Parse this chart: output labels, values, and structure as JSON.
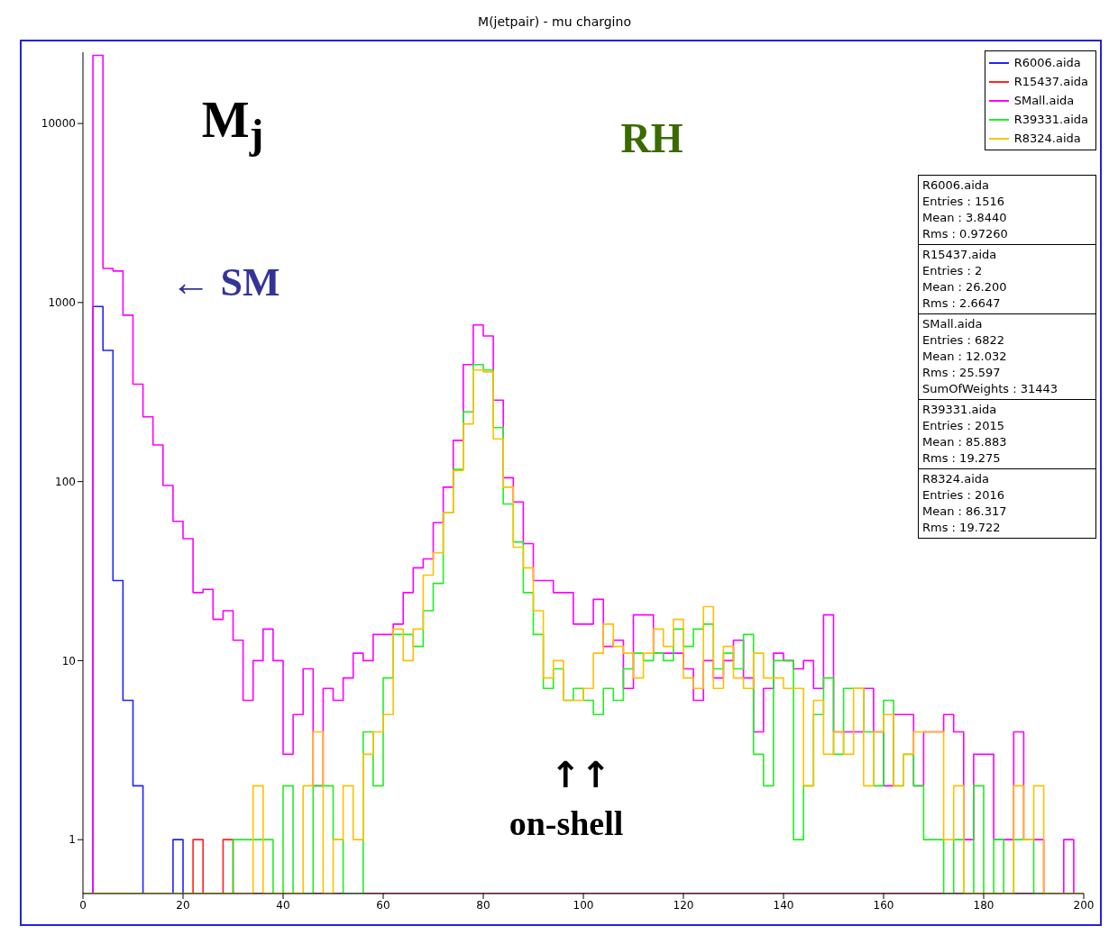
{
  "chart_data": {
    "type": "histogram",
    "title": "M(jetpair) - mu chargino",
    "bins": [
      0,
      2,
      4,
      6,
      8,
      10,
      12,
      14,
      16,
      18,
      20,
      22,
      24,
      26,
      28,
      30,
      32,
      34,
      36,
      38,
      40,
      42,
      44,
      46,
      48,
      50,
      52,
      54,
      56,
      58,
      60,
      62,
      64,
      66,
      68,
      70,
      72,
      74,
      76,
      78,
      80,
      82,
      84,
      86,
      88,
      90,
      92,
      94,
      96,
      98,
      100,
      102,
      104,
      106,
      108,
      110,
      112,
      114,
      116,
      118,
      120,
      122,
      124,
      126,
      128,
      130,
      132,
      134,
      136,
      138,
      140,
      142,
      144,
      146,
      148,
      150,
      152,
      154,
      156,
      158,
      160,
      162,
      164,
      166,
      168,
      170,
      172,
      174,
      176,
      178,
      180,
      182,
      184,
      186,
      188,
      190,
      192,
      194,
      196,
      198,
      200
    ],
    "series": [
      {
        "name": "R6006.aida",
        "color": "#2222ff",
        "values": [
          null,
          950,
          540,
          28,
          6,
          2,
          null,
          null,
          null,
          1,
          null,
          null,
          null,
          null,
          null,
          null,
          null,
          null,
          null,
          null,
          null,
          null,
          null,
          null,
          null,
          null,
          null,
          null,
          null,
          null,
          null,
          null,
          null,
          null,
          null,
          null,
          null,
          null,
          null,
          null,
          null,
          null,
          null,
          null,
          null,
          null,
          null,
          null,
          null,
          null,
          null,
          null,
          null,
          null,
          null,
          null,
          null,
          null,
          null,
          null,
          null,
          null,
          null,
          null,
          null,
          null,
          null,
          null,
          null,
          null,
          null,
          null,
          null,
          null,
          null,
          null,
          null,
          null,
          null,
          null,
          null,
          null,
          null,
          null,
          null,
          null,
          null,
          null,
          null,
          null,
          null,
          null,
          null,
          null,
          null,
          null,
          null,
          null,
          null,
          null
        ]
      },
      {
        "name": "R15437.aida",
        "color": "#ff2222",
        "values": [
          null,
          null,
          null,
          null,
          null,
          null,
          null,
          null,
          null,
          null,
          null,
          1,
          null,
          null,
          1,
          null,
          null,
          null,
          null,
          null,
          null,
          null,
          null,
          null,
          null,
          null,
          null,
          null,
          null,
          null,
          null,
          null,
          null,
          null,
          null,
          null,
          null,
          null,
          null,
          null,
          null,
          null,
          null,
          null,
          null,
          null,
          null,
          null,
          null,
          null,
          null,
          null,
          null,
          null,
          null,
          null,
          null,
          null,
          null,
          null,
          null,
          null,
          null,
          null,
          null,
          null,
          null,
          null,
          null,
          null,
          null,
          null,
          null,
          null,
          null,
          null,
          null,
          null,
          null,
          null,
          null,
          null,
          null,
          null,
          null,
          null,
          null,
          null,
          null,
          null,
          null,
          null,
          null,
          null,
          null,
          null,
          null,
          null,
          null,
          null
        ]
      },
      {
        "name": "SMall.aida",
        "color": "#ff00ff",
        "values": [
          null,
          24000,
          1550,
          1500,
          850,
          350,
          230,
          160,
          95,
          60,
          48,
          24,
          25,
          17,
          19,
          13,
          6,
          10,
          15,
          10,
          3,
          5,
          9,
          2,
          7,
          6,
          8,
          11,
          10,
          14,
          14,
          16,
          24,
          33,
          37,
          59,
          93,
          170,
          450,
          750,
          650,
          285,
          105,
          77,
          45,
          28,
          28,
          24,
          24,
          16,
          16,
          22,
          12,
          13,
          7,
          18,
          18,
          11,
          11,
          11,
          9,
          6,
          10,
          8,
          10,
          13,
          8,
          4,
          7,
          11,
          10,
          9,
          10,
          7,
          18,
          4,
          4,
          4,
          7,
          4,
          2,
          5,
          5,
          2,
          4,
          4,
          5,
          4,
          1,
          3,
          3,
          1,
          1,
          4,
          1,
          1,
          null,
          null,
          1,
          null
        ]
      },
      {
        "name": "R39331.aida",
        "color": "#22ee22",
        "values": [
          null,
          null,
          null,
          null,
          null,
          null,
          null,
          null,
          null,
          null,
          null,
          null,
          null,
          null,
          null,
          1,
          1,
          1,
          1,
          null,
          2,
          null,
          null,
          2,
          2,
          1,
          null,
          null,
          4,
          2,
          8,
          14,
          14,
          12,
          19,
          27,
          67,
          117,
          245,
          450,
          420,
          200,
          75,
          46,
          24,
          14,
          7,
          9,
          6,
          7,
          6,
          5,
          7,
          6,
          9,
          11,
          10,
          11,
          10,
          15,
          12,
          15,
          16,
          9,
          11,
          9,
          14,
          3,
          2,
          10,
          10,
          1,
          2,
          5,
          8,
          3,
          7,
          7,
          4,
          2,
          6,
          2,
          3,
          2,
          1,
          1,
          null,
          1,
          null,
          2,
          null,
          1,
          null,
          1,
          1,
          null,
          null,
          null,
          null,
          null
        ]
      },
      {
        "name": "R8324.aida",
        "color": "#ffc000",
        "values": [
          null,
          null,
          null,
          null,
          null,
          null,
          null,
          null,
          null,
          null,
          null,
          null,
          null,
          null,
          null,
          null,
          null,
          2,
          null,
          null,
          null,
          null,
          2,
          4,
          null,
          1,
          2,
          1,
          3,
          4,
          5,
          15,
          10,
          15,
          30,
          40,
          67,
          115,
          210,
          420,
          410,
          173,
          93,
          43,
          33,
          19,
          8,
          10,
          6,
          6,
          7,
          11,
          16,
          12,
          11,
          8,
          11,
          15,
          12,
          17,
          8,
          7,
          20,
          7,
          12,
          8,
          7,
          11,
          8,
          8,
          7,
          7,
          2,
          6,
          3,
          4,
          3,
          7,
          2,
          4,
          5,
          2,
          3,
          4,
          4,
          4,
          1,
          2,
          null,
          null,
          null,
          null,
          null,
          2,
          1,
          2,
          null,
          null,
          null,
          null
        ]
      }
    ],
    "xlim": [
      0,
      200
    ],
    "xticks": [
      0,
      20,
      40,
      60,
      80,
      100,
      120,
      140,
      160,
      180,
      200
    ],
    "ylim": [
      0.5,
      25000
    ],
    "yticks": [
      1,
      10,
      100,
      1000,
      10000
    ],
    "log": "y",
    "legend": "top right",
    "annotations": [
      "M$_{j}$",
      "RH",
      "← SM",
      "↑↑",
      "on-shell",
      "R6006.aida\nEntries :  1516\nMean :  3.8440\nRms :  0.97260",
      "R15437.aida\nEntries :  2\nMean :  26.200\nRms :  2.6647",
      "SMall.aida\nEntries :  6822\nMean :  12.032\nRms :  25.597\nSumOfWeights :  31443",
      "R39331.aida\nEntries :  2015\nMean :  85.883\nRms :  19.275",
      "R8324.aida\nEntries :  2016\nMean :  86.317\nRms :  19.722"
    ]
  }
}
